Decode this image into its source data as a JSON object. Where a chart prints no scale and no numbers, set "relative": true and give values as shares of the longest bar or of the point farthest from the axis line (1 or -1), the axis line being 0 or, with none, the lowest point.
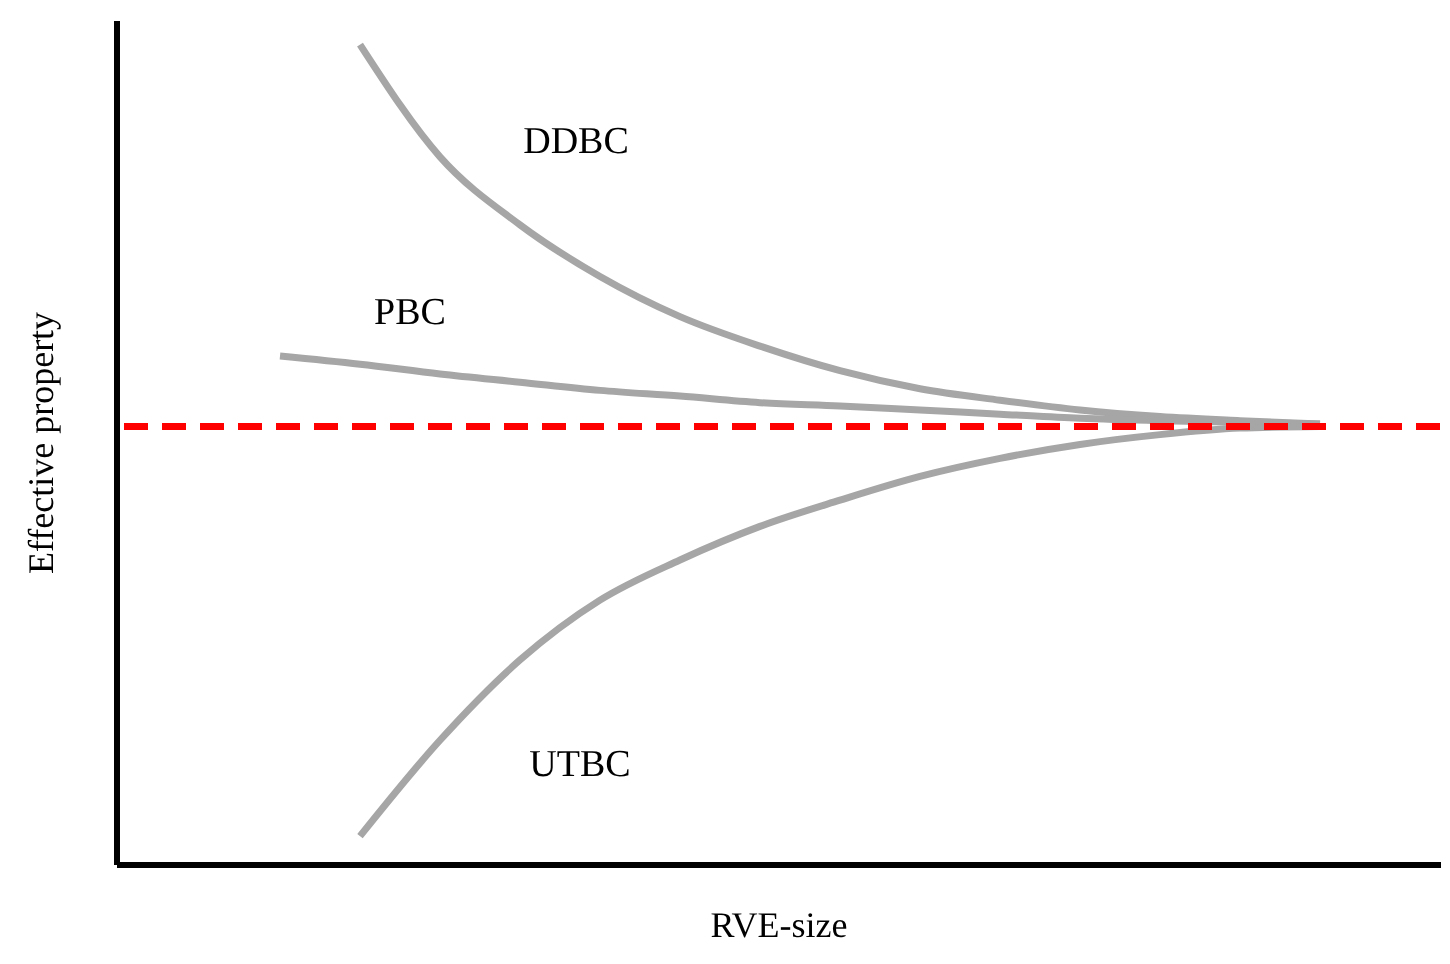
{
  "chart_data": {
    "type": "line",
    "relative": true,
    "xlabel": "RVE-size",
    "ylabel": "Effective property",
    "categories": [
      null,
      null,
      null,
      null,
      null,
      null,
      null,
      null,
      null,
      null,
      null,
      null,
      null,
      null
    ],
    "series": [
      {
        "name": "DDBC",
        "color": "#a6a6a6",
        "values": [
          null,
          1.0,
          0.863,
          0.78,
          0.717,
          0.668,
          0.632,
          0.602,
          0.58,
          0.566,
          0.554,
          0.546,
          0.541,
          0.537
        ]
      },
      {
        "name": "PBC",
        "color": "#a6a6a6",
        "values": [
          0.62,
          0.61,
          0.598,
          0.588,
          0.578,
          0.571,
          0.563,
          0.559,
          0.554,
          0.549,
          0.544,
          0.541,
          0.539,
          0.537
        ]
      },
      {
        "name": "UTBC",
        "color": "#a6a6a6",
        "values": [
          null,
          0.034,
          0.151,
          0.249,
          0.322,
          0.371,
          0.412,
          0.444,
          0.473,
          0.495,
          0.512,
          0.524,
          0.532,
          0.534
        ]
      }
    ],
    "ref_lines": [
      {
        "axis": "y",
        "value": 0.534,
        "color": "#ff0000",
        "line_style": "dashed"
      }
    ],
    "marker": "none"
  }
}
